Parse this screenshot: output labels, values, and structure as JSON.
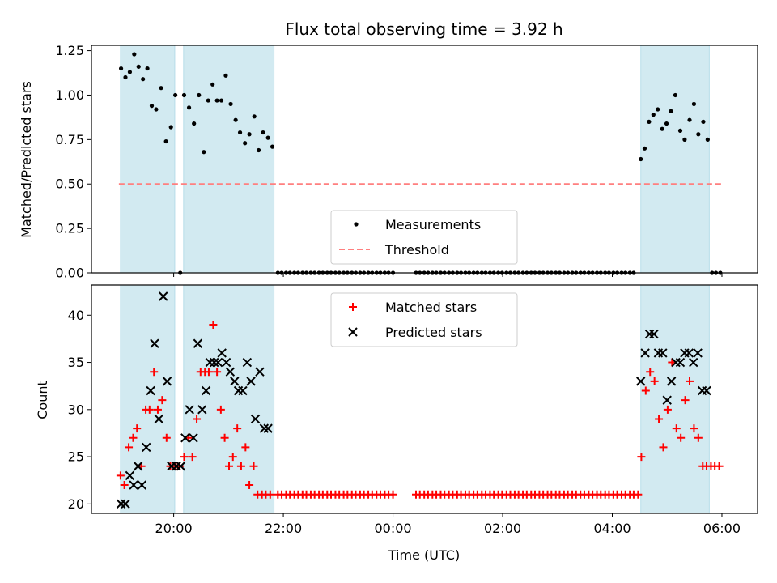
{
  "chart_data": [
    {
      "type": "scatter",
      "title": "Flux total observing time = 3.92 h",
      "xlabel": "",
      "ylabel": "Matched/Predicted stars",
      "ylim": [
        0,
        1.28
      ],
      "yticks": [
        "0.00",
        "0.25",
        "0.50",
        "0.75",
        "1.00",
        "1.25"
      ],
      "x_axis_unit": "hours since 18:00 UTC",
      "xlim": [
        0.5,
        12.65
      ],
      "shaded_intervals": [
        [
          1.03,
          2.02
        ],
        [
          2.18,
          3.83
        ],
        [
          10.52,
          11.77
        ]
      ],
      "shade_color": "#add8e6",
      "threshold": 0.5,
      "threshold_color": "#ff7f7f",
      "legend": {
        "position": "lower-center",
        "entries": [
          "Measurements",
          "Threshold"
        ]
      },
      "series": [
        {
          "name": "Measurements",
          "marker": "dot",
          "color": "#000000",
          "x": [
            1.04,
            1.12,
            1.2,
            1.28,
            1.36,
            1.44,
            1.52,
            1.6,
            1.68,
            1.77,
            1.86,
            1.95,
            2.03,
            2.12,
            2.19,
            2.28,
            2.37,
            2.46,
            2.55,
            2.63,
            2.71,
            2.79,
            2.87,
            2.95,
            3.04,
            3.13,
            3.21,
            3.3,
            3.38,
            3.47,
            3.55,
            3.63,
            3.72,
            3.8,
            10.52,
            10.59,
            10.67,
            10.75,
            10.83,
            10.91,
            10.99,
            11.07,
            11.15,
            11.24,
            11.32,
            11.41,
            11.49,
            11.57,
            11.66,
            11.74
          ],
          "y": [
            1.15,
            1.1,
            1.13,
            1.23,
            1.16,
            1.09,
            1.15,
            0.94,
            0.92,
            1.04,
            0.74,
            0.82,
            1.0,
            0.0,
            1.0,
            0.93,
            0.84,
            1.0,
            0.68,
            0.97,
            1.06,
            0.97,
            0.97,
            1.11,
            0.95,
            0.86,
            0.79,
            0.73,
            0.78,
            0.88,
            0.69,
            0.79,
            0.76,
            0.71,
            0.64,
            0.7,
            0.85,
            0.89,
            0.92,
            0.81,
            0.84,
            0.91,
            1.0,
            0.8,
            0.75,
            0.86,
            0.95,
            0.78,
            0.85,
            0.75
          ]
        },
        {
          "name": "",
          "marker": "dot",
          "color": "#000000",
          "x": [
            3.9,
            3.97,
            4.05,
            4.12,
            4.2,
            4.27,
            4.35,
            4.42,
            4.5,
            4.57,
            4.65,
            4.72,
            4.8,
            4.87,
            4.95,
            5.02,
            5.1,
            5.17,
            5.25,
            5.32,
            5.4,
            5.47,
            5.55,
            5.62,
            5.7,
            5.77,
            5.85,
            5.92,
            6.0,
            6.42,
            6.49,
            6.57,
            6.64,
            6.72,
            6.79,
            6.87,
            6.94,
            7.02,
            7.09,
            7.17,
            7.24,
            7.32,
            7.39,
            7.47,
            7.54,
            7.62,
            7.69,
            7.77,
            7.84,
            7.92,
            7.99,
            8.07,
            8.14,
            8.22,
            8.29,
            8.37,
            8.44,
            8.52,
            8.59,
            8.67,
            8.74,
            8.82,
            8.89,
            8.97,
            9.04,
            9.12,
            9.19,
            9.27,
            9.34,
            9.42,
            9.49,
            9.57,
            9.64,
            9.72,
            9.79,
            9.87,
            9.94,
            10.02,
            10.09,
            10.17,
            10.24,
            10.32,
            10.39,
            11.82,
            11.89,
            11.97
          ],
          "y": [
            0,
            0,
            0,
            0,
            0,
            0,
            0,
            0,
            0,
            0,
            0,
            0,
            0,
            0,
            0,
            0,
            0,
            0,
            0,
            0,
            0,
            0,
            0,
            0,
            0,
            0,
            0,
            0,
            0,
            0,
            0,
            0,
            0,
            0,
            0,
            0,
            0,
            0,
            0,
            0,
            0,
            0,
            0,
            0,
            0,
            0,
            0,
            0,
            0,
            0,
            0,
            0,
            0,
            0,
            0,
            0,
            0,
            0,
            0,
            0,
            0,
            0,
            0,
            0,
            0,
            0,
            0,
            0,
            0,
            0,
            0,
            0,
            0,
            0,
            0,
            0,
            0,
            0,
            0,
            0,
            0,
            0,
            0,
            0,
            0,
            0
          ]
        }
      ]
    },
    {
      "type": "scatter",
      "title": "",
      "xlabel": "Time (UTC)",
      "ylabel": "Count",
      "ylim": [
        19,
        43.2
      ],
      "yticks": [
        "20",
        "25",
        "30",
        "35",
        "40"
      ],
      "xticks": [
        "20:00",
        "22:00",
        "00:00",
        "02:00",
        "04:00",
        "06:00"
      ],
      "x_axis_unit": "hours since 18:00 UTC",
      "xlim": [
        0.5,
        12.65
      ],
      "shaded_intervals": [
        [
          1.03,
          2.02
        ],
        [
          2.18,
          3.83
        ],
        [
          10.52,
          11.77
        ]
      ],
      "legend": {
        "position": "top-center",
        "entries": [
          "Matched stars",
          "Predicted stars"
        ]
      },
      "series": [
        {
          "name": "Matched stars",
          "marker": "plus",
          "color": "#ff0000",
          "x": [
            1.03,
            1.1,
            1.18,
            1.26,
            1.33,
            1.41,
            1.49,
            1.56,
            1.64,
            1.71,
            1.79,
            1.87,
            1.94,
            2.04,
            2.11,
            2.19,
            2.27,
            2.34,
            2.42,
            2.49,
            2.57,
            2.64,
            2.72,
            2.79,
            2.86,
            2.93,
            3.01,
            3.08,
            3.16,
            3.23,
            3.31,
            3.38,
            3.46,
            3.53,
            3.61,
            3.68,
            3.76,
            10.53,
            10.61,
            10.69,
            10.77,
            10.85,
            10.93,
            11.01,
            11.09,
            11.17,
            11.25,
            11.33,
            11.41,
            11.49,
            11.57,
            11.65,
            11.72,
            11.8,
            11.87,
            11.95
          ],
          "y": [
            23,
            22,
            26,
            27,
            28,
            24,
            30,
            30,
            34,
            30,
            31,
            27,
            24,
            24,
            24,
            25,
            27,
            25,
            29,
            34,
            34,
            34,
            39,
            34,
            30,
            27,
            24,
            25,
            28,
            24,
            26,
            22,
            24,
            21,
            21,
            21,
            21,
            25,
            32,
            34,
            33,
            29,
            26,
            30,
            35,
            28,
            27,
            31,
            33,
            28,
            27,
            24,
            24,
            24,
            24,
            24
          ]
        },
        {
          "name": "",
          "marker": "plus",
          "color": "#ff0000",
          "x": [
            3.9,
            3.97,
            4.05,
            4.12,
            4.2,
            4.27,
            4.35,
            4.42,
            4.5,
            4.57,
            4.65,
            4.72,
            4.8,
            4.87,
            4.95,
            5.02,
            5.1,
            5.17,
            5.25,
            5.32,
            5.4,
            5.47,
            5.55,
            5.62,
            5.7,
            5.77,
            5.85,
            5.92,
            6.0,
            6.42,
            6.49,
            6.57,
            6.64,
            6.72,
            6.79,
            6.87,
            6.94,
            7.02,
            7.09,
            7.17,
            7.24,
            7.32,
            7.39,
            7.47,
            7.54,
            7.62,
            7.69,
            7.77,
            7.84,
            7.92,
            7.99,
            8.07,
            8.14,
            8.22,
            8.29,
            8.37,
            8.44,
            8.52,
            8.59,
            8.67,
            8.74,
            8.82,
            8.89,
            8.97,
            9.04,
            9.12,
            9.19,
            9.27,
            9.34,
            9.42,
            9.49,
            9.57,
            9.64,
            9.72,
            9.79,
            9.87,
            9.94,
            10.02,
            10.09,
            10.17,
            10.24,
            10.32,
            10.39,
            10.47
          ],
          "y": [
            21,
            21,
            21,
            21,
            21,
            21,
            21,
            21,
            21,
            21,
            21,
            21,
            21,
            21,
            21,
            21,
            21,
            21,
            21,
            21,
            21,
            21,
            21,
            21,
            21,
            21,
            21,
            21,
            21,
            21,
            21,
            21,
            21,
            21,
            21,
            21,
            21,
            21,
            21,
            21,
            21,
            21,
            21,
            21,
            21,
            21,
            21,
            21,
            21,
            21,
            21,
            21,
            21,
            21,
            21,
            21,
            21,
            21,
            21,
            21,
            21,
            21,
            21,
            21,
            21,
            21,
            21,
            21,
            21,
            21,
            21,
            21,
            21,
            21,
            21,
            21,
            21,
            21,
            21,
            21,
            21,
            21,
            21,
            21
          ]
        },
        {
          "name": "Predicted stars",
          "marker": "x",
          "color": "#000000",
          "x": [
            1.04,
            1.12,
            1.2,
            1.27,
            1.35,
            1.42,
            1.5,
            1.58,
            1.65,
            1.73,
            1.81,
            1.88,
            1.96,
            2.05,
            2.13,
            2.21,
            2.29,
            2.36,
            2.44,
            2.52,
            2.59,
            2.66,
            2.74,
            2.81,
            2.88,
            2.96,
            3.03,
            3.11,
            3.18,
            3.26,
            3.34,
            3.41,
            3.49,
            3.57,
            3.65,
            3.72,
            10.52,
            10.6,
            10.68,
            10.76,
            10.84,
            10.92,
            11.0,
            11.08,
            11.16,
            11.24,
            11.32,
            11.4,
            11.48,
            11.56,
            11.64,
            11.72
          ],
          "y": [
            20,
            20,
            23,
            22,
            24,
            22,
            26,
            32,
            37,
            29,
            42,
            33,
            24,
            24,
            24,
            27,
            30,
            27,
            37,
            30,
            32,
            35,
            35,
            35,
            36,
            35,
            34,
            33,
            32,
            32,
            35,
            33,
            29,
            34,
            28,
            28,
            33,
            36,
            38,
            38,
            36,
            36,
            31,
            33,
            35,
            35,
            36,
            36,
            35,
            36,
            32,
            32
          ]
        }
      ]
    }
  ]
}
